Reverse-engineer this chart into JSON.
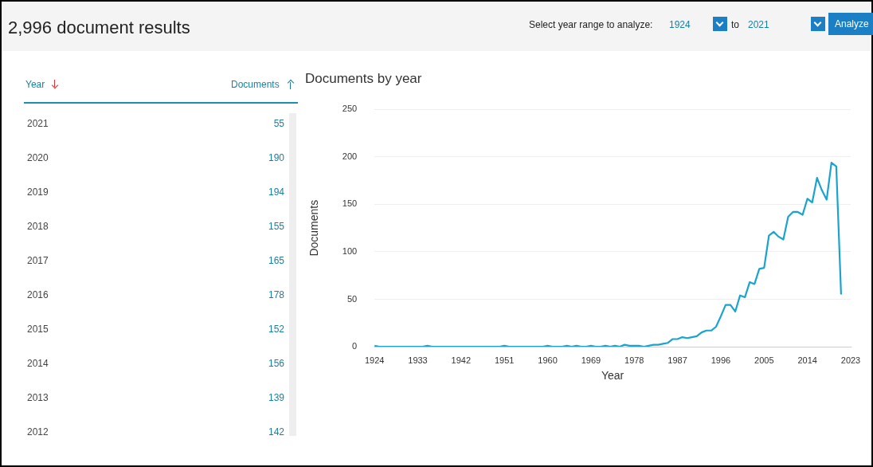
{
  "chart_data": {
    "type": "line",
    "title": "Documents by year",
    "xlabel": "Year",
    "ylabel": "Documents",
    "annotations": [
      "2,996 document results",
      "Select year range to analyze:",
      "1924",
      "to",
      "2021",
      "Analyze",
      "Year",
      "Documents",
      "2021",
      "55",
      "2020",
      "190",
      "2019",
      "194",
      "2018",
      "155",
      "2017",
      "165",
      "2016",
      "178",
      "2015",
      "152",
      "2014",
      "156",
      "2013",
      "139",
      "2012",
      "142"
    ],
    "x": [
      1924,
      1925,
      1926,
      1927,
      1928,
      1929,
      1930,
      1931,
      1932,
      1933,
      1934,
      1935,
      1936,
      1937,
      1938,
      1939,
      1940,
      1941,
      1942,
      1943,
      1944,
      1945,
      1946,
      1947,
      1948,
      1949,
      1950,
      1951,
      1952,
      1953,
      1954,
      1955,
      1956,
      1957,
      1958,
      1959,
      1960,
      1961,
      1962,
      1963,
      1964,
      1965,
      1966,
      1967,
      1968,
      1969,
      1970,
      1971,
      1972,
      1973,
      1974,
      1975,
      1976,
      1977,
      1978,
      1979,
      1980,
      1981,
      1982,
      1983,
      1984,
      1985,
      1986,
      1987,
      1988,
      1989,
      1990,
      1991,
      1992,
      1993,
      1994,
      1995,
      1996,
      1997,
      1998,
      1999,
      2000,
      2001,
      2002,
      2003,
      2004,
      2005,
      2006,
      2007,
      2008,
      2009,
      2010,
      2011,
      2012,
      2013,
      2014,
      2015,
      2016,
      2017,
      2018,
      2019,
      2020,
      2021
    ],
    "values": [
      1,
      0,
      0,
      0,
      0,
      0,
      0,
      0,
      0,
      0,
      0,
      1,
      0,
      0,
      0,
      0,
      0,
      0,
      0,
      0,
      0,
      0,
      0,
      0,
      0,
      0,
      0,
      1,
      0,
      0,
      0,
      0,
      0,
      0,
      0,
      0,
      1,
      0,
      0,
      0,
      1,
      0,
      1,
      0,
      0,
      1,
      0,
      0,
      1,
      0,
      1,
      0,
      2,
      1,
      1,
      1,
      0,
      1,
      2,
      2,
      3,
      4,
      8,
      8,
      10,
      9,
      10,
      11,
      15,
      17,
      17,
      21,
      32,
      44,
      44,
      37,
      54,
      52,
      68,
      66,
      82,
      83,
      117,
      121,
      116,
      113,
      137,
      142,
      142,
      139,
      156,
      152,
      178,
      165,
      155,
      194,
      190,
      55
    ],
    "color": "#1ba3cf",
    "marker": "none",
    "line_style": "solid",
    "xlim": [
      1924,
      2023
    ],
    "xticks": [
      1924,
      1933,
      1942,
      1951,
      1960,
      1969,
      1978,
      1987,
      1996,
      2005,
      2014,
      2023
    ],
    "ylim": [
      0,
      250
    ],
    "yticks": [
      0,
      50,
      100,
      150,
      200,
      250
    ],
    "grid": "y",
    "legend": false
  }
}
